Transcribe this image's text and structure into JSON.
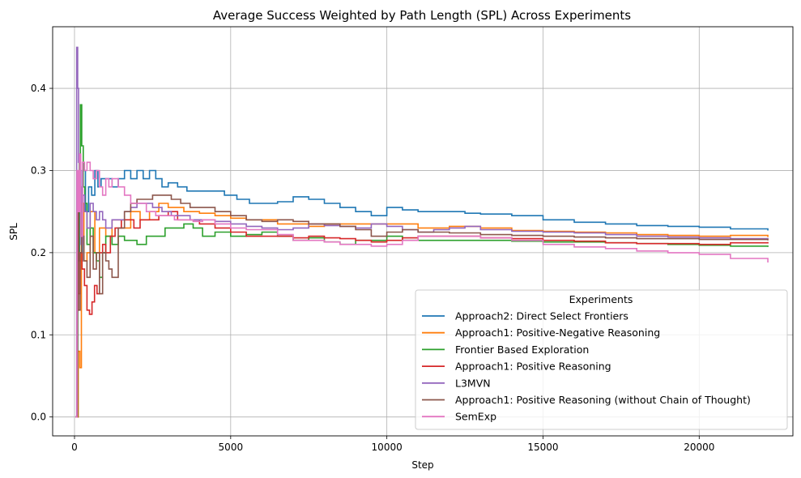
{
  "chart_data": {
    "type": "line",
    "title": "Average Success Weighted by Path Length (SPL) Across Experiments",
    "xlabel": "Step",
    "ylabel": "SPL",
    "xlim": [
      -700,
      23000
    ],
    "ylim": [
      -0.023,
      0.475
    ],
    "xticks": [
      0,
      5000,
      10000,
      15000,
      20000
    ],
    "xtick_labels": [
      "0",
      "5000",
      "10000",
      "15000",
      "20000"
    ],
    "yticks": [
      0.0,
      0.1,
      0.2,
      0.3,
      0.4
    ],
    "ytick_labels": [
      "0.0",
      "0.1",
      "0.2",
      "0.3",
      "0.4"
    ],
    "grid": true,
    "legend": {
      "title": "Experiments",
      "position": "lower-right"
    },
    "series": [
      {
        "name": "Approach2: Direct Select Frontiers",
        "color": "#1f77b4",
        "x": [
          30,
          100,
          160,
          250,
          350,
          450,
          550,
          650,
          750,
          850,
          1000,
          1200,
          1400,
          1600,
          1800,
          2000,
          2200,
          2400,
          2600,
          2800,
          3000,
          3300,
          3600,
          4000,
          4400,
          4800,
          5200,
          5600,
          6000,
          6500,
          7000,
          7500,
          8000,
          8500,
          9000,
          9500,
          10000,
          10500,
          11000,
          11500,
          12000,
          12500,
          13000,
          14000,
          15000,
          16000,
          17000,
          18000,
          19000,
          20000,
          21000,
          22200
        ],
        "y": [
          0.0,
          0.28,
          0.19,
          0.3,
          0.25,
          0.28,
          0.27,
          0.3,
          0.28,
          0.29,
          0.29,
          0.28,
          0.29,
          0.3,
          0.29,
          0.3,
          0.29,
          0.3,
          0.29,
          0.28,
          0.285,
          0.28,
          0.275,
          0.275,
          0.275,
          0.27,
          0.265,
          0.26,
          0.26,
          0.262,
          0.268,
          0.265,
          0.26,
          0.255,
          0.25,
          0.245,
          0.255,
          0.252,
          0.25,
          0.25,
          0.25,
          0.248,
          0.247,
          0.245,
          0.24,
          0.237,
          0.235,
          0.233,
          0.232,
          0.231,
          0.229,
          0.227
        ]
      },
      {
        "name": "Approach1: Positive-Negative Reasoning",
        "color": "#ff7f0e",
        "x": [
          30,
          80,
          120,
          170,
          220,
          300,
          400,
          500,
          650,
          800,
          1000,
          1200,
          1500,
          1800,
          2100,
          2400,
          2700,
          3000,
          3500,
          4000,
          4500,
          5000,
          5500,
          6000,
          6500,
          7000,
          7500,
          8000,
          8500,
          9000,
          10000,
          11000,
          12000,
          13000,
          14000,
          15000,
          16000,
          17000,
          18000,
          19000,
          20000,
          21000,
          22200
        ],
        "y": [
          0.0,
          0.0,
          0.08,
          0.06,
          0.26,
          0.19,
          0.2,
          0.25,
          0.2,
          0.23,
          0.22,
          0.24,
          0.23,
          0.25,
          0.24,
          0.25,
          0.26,
          0.255,
          0.25,
          0.248,
          0.245,
          0.242,
          0.24,
          0.24,
          0.235,
          0.235,
          0.232,
          0.235,
          0.235,
          0.235,
          0.235,
          0.23,
          0.232,
          0.23,
          0.227,
          0.226,
          0.225,
          0.224,
          0.222,
          0.221,
          0.22,
          0.221,
          0.219
        ]
      },
      {
        "name": "Frontier Based Exploration",
        "color": "#2ca02c",
        "x": [
          30,
          100,
          150,
          190,
          230,
          280,
          330,
          400,
          500,
          600,
          700,
          800,
          900,
          1000,
          1200,
          1400,
          1600,
          1800,
          2000,
          2300,
          2600,
          2900,
          3200,
          3500,
          3800,
          4100,
          4500,
          5000,
          5500,
          6000,
          6500,
          7000,
          7500,
          8000,
          8500,
          9000,
          9500,
          10000,
          10500,
          11000,
          12000,
          13000,
          14000,
          15000,
          16000,
          17000,
          18000,
          19000,
          20000,
          21000,
          22200
        ],
        "y": [
          0.0,
          0.2,
          0.32,
          0.38,
          0.33,
          0.28,
          0.26,
          0.21,
          0.23,
          0.2,
          0.19,
          0.17,
          0.2,
          0.22,
          0.21,
          0.22,
          0.215,
          0.215,
          0.21,
          0.22,
          0.22,
          0.23,
          0.23,
          0.235,
          0.23,
          0.22,
          0.225,
          0.22,
          0.222,
          0.225,
          0.22,
          0.215,
          0.218,
          0.213,
          0.21,
          0.215,
          0.215,
          0.22,
          0.215,
          0.215,
          0.215,
          0.215,
          0.214,
          0.213,
          0.213,
          0.212,
          0.211,
          0.21,
          0.209,
          0.208,
          0.207
        ]
      },
      {
        "name": "Approach1: Positive Reasoning",
        "color": "#d62728",
        "x": [
          30,
          90,
          130,
          180,
          240,
          320,
          400,
          480,
          560,
          640,
          720,
          800,
          900,
          1000,
          1150,
          1300,
          1500,
          1700,
          1900,
          2100,
          2400,
          2700,
          3000,
          3300,
          3600,
          4000,
          4500,
          5000,
          5500,
          6000,
          6500,
          7000,
          7500,
          8000,
          8500,
          9000,
          9500,
          10000,
          10500,
          11000,
          11500,
          12000,
          13000,
          14000,
          15000,
          16000,
          17000,
          18000,
          19000,
          20000,
          21000,
          22200
        ],
        "y": [
          0.0,
          0.28,
          0.15,
          0.2,
          0.18,
          0.16,
          0.13,
          0.125,
          0.14,
          0.16,
          0.15,
          0.2,
          0.21,
          0.2,
          0.22,
          0.23,
          0.24,
          0.24,
          0.23,
          0.24,
          0.24,
          0.245,
          0.25,
          0.24,
          0.24,
          0.235,
          0.23,
          0.225,
          0.22,
          0.22,
          0.22,
          0.218,
          0.22,
          0.218,
          0.217,
          0.215,
          0.213,
          0.215,
          0.218,
          0.22,
          0.22,
          0.22,
          0.218,
          0.217,
          0.215,
          0.214,
          0.212,
          0.211,
          0.211,
          0.21,
          0.212,
          0.213
        ]
      },
      {
        "name": "L3MVN",
        "color": "#9467bd",
        "x": [
          30,
          70,
          100,
          130,
          170,
          210,
          260,
          320,
          400,
          500,
          600,
          700,
          800,
          900,
          1000,
          1200,
          1400,
          1600,
          1800,
          2000,
          2200,
          2500,
          2800,
          3100,
          3400,
          3700,
          4000,
          4500,
          5000,
          5500,
          6000,
          6500,
          7000,
          7500,
          8000,
          8500,
          9000,
          9500,
          10000,
          10500,
          11000,
          11500,
          12000,
          12500,
          13000,
          14000,
          15000,
          16000,
          17000,
          18000,
          19000,
          20000,
          21000,
          22200
        ],
        "y": [
          0.0,
          0.45,
          0.4,
          0.31,
          0.28,
          0.21,
          0.27,
          0.25,
          0.23,
          0.26,
          0.25,
          0.24,
          0.25,
          0.24,
          0.23,
          0.24,
          0.24,
          0.25,
          0.255,
          0.26,
          0.26,
          0.255,
          0.25,
          0.245,
          0.245,
          0.24,
          0.24,
          0.238,
          0.235,
          0.232,
          0.23,
          0.228,
          0.23,
          0.235,
          0.233,
          0.232,
          0.23,
          0.235,
          0.232,
          0.228,
          0.225,
          0.228,
          0.23,
          0.232,
          0.228,
          0.226,
          0.225,
          0.224,
          0.222,
          0.22,
          0.219,
          0.218,
          0.217,
          0.216
        ]
      },
      {
        "name": "Approach1: Positive Reasoning (without Chain of Thought)",
        "color": "#8c564b",
        "x": [
          30,
          90,
          130,
          180,
          230,
          300,
          400,
          500,
          600,
          700,
          800,
          900,
          1000,
          1100,
          1200,
          1400,
          1600,
          1800,
          2000,
          2200,
          2500,
          2800,
          3100,
          3400,
          3700,
          4000,
          4500,
          5000,
          5500,
          6000,
          6500,
          7000,
          7500,
          8000,
          8500,
          9000,
          9500,
          10000,
          10500,
          11000,
          12000,
          13000,
          14000,
          15000,
          16000,
          17000,
          18000,
          19000,
          20000,
          21000,
          22200
        ],
        "y": [
          0.0,
          0.26,
          0.13,
          0.2,
          0.22,
          0.19,
          0.17,
          0.22,
          0.18,
          0.2,
          0.15,
          0.2,
          0.19,
          0.18,
          0.17,
          0.23,
          0.25,
          0.26,
          0.265,
          0.265,
          0.27,
          0.27,
          0.265,
          0.26,
          0.255,
          0.255,
          0.25,
          0.245,
          0.24,
          0.238,
          0.24,
          0.238,
          0.235,
          0.235,
          0.232,
          0.228,
          0.22,
          0.225,
          0.228,
          0.225,
          0.224,
          0.222,
          0.221,
          0.22,
          0.219,
          0.218,
          0.217,
          0.217,
          0.216,
          0.216,
          0.215
        ]
      },
      {
        "name": "SemExp",
        "color": "#e377c2",
        "x": [
          30,
          80,
          120,
          160,
          200,
          260,
          320,
          400,
          500,
          600,
          700,
          800,
          900,
          1000,
          1100,
          1200,
          1400,
          1600,
          1800,
          2000,
          2300,
          2600,
          2900,
          3200,
          3500,
          3800,
          4100,
          4500,
          5000,
          5500,
          6000,
          6500,
          7000,
          7500,
          8000,
          8500,
          9000,
          9500,
          10000,
          10500,
          11000,
          12000,
          13000,
          14000,
          15000,
          16000,
          17000,
          18000,
          19000,
          20000,
          21000,
          22200
        ],
        "y": [
          0.0,
          0.3,
          0.25,
          0.32,
          0.22,
          0.31,
          0.3,
          0.31,
          0.3,
          0.29,
          0.3,
          0.28,
          0.27,
          0.29,
          0.28,
          0.29,
          0.28,
          0.27,
          0.26,
          0.26,
          0.25,
          0.245,
          0.245,
          0.24,
          0.24,
          0.238,
          0.24,
          0.235,
          0.23,
          0.228,
          0.228,
          0.222,
          0.215,
          0.215,
          0.213,
          0.21,
          0.21,
          0.208,
          0.21,
          0.215,
          0.22,
          0.22,
          0.218,
          0.215,
          0.21,
          0.207,
          0.205,
          0.202,
          0.2,
          0.198,
          0.193,
          0.188
        ]
      }
    ]
  }
}
